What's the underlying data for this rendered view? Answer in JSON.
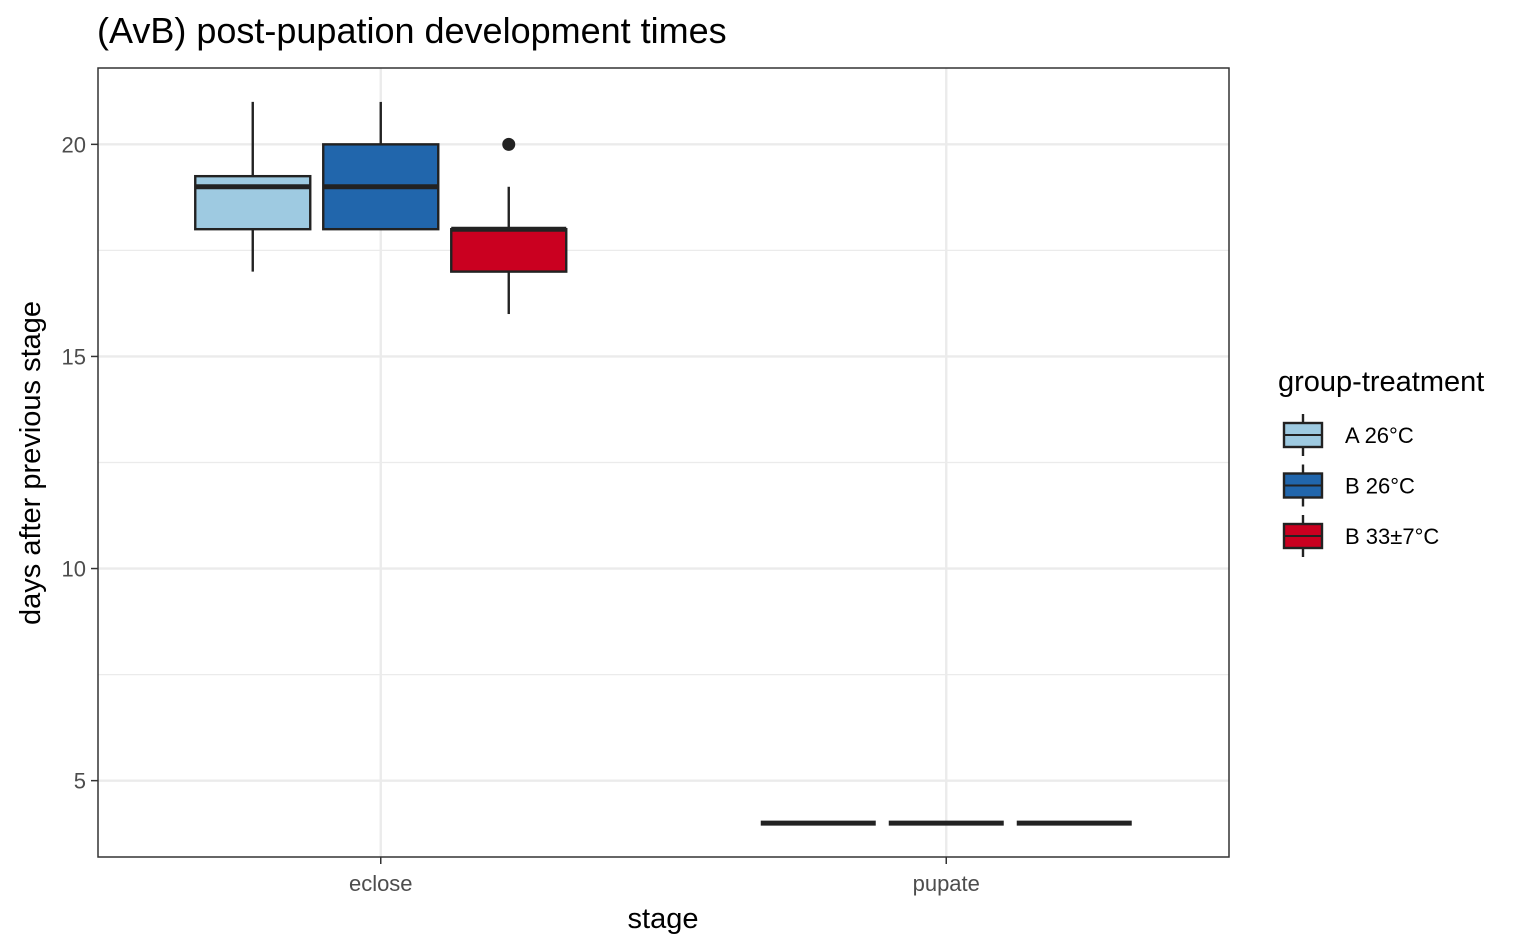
{
  "chart_data": {
    "type": "boxplot",
    "title": "(AvB) post-pupation development times",
    "xlabel": "stage",
    "ylabel": "days after previous stage",
    "categories": [
      "eclose",
      "pupate"
    ],
    "ylim": [
      3.2,
      21.8
    ],
    "yticks": [
      5,
      10,
      15,
      20
    ],
    "grid": true,
    "legend": {
      "title": "group-treatment",
      "position": "right"
    },
    "series": [
      {
        "name": "A 26°C",
        "color": "#9ecae1",
        "boxes": [
          {
            "category": "eclose",
            "min": 17,
            "q1": 18,
            "median": 19,
            "q3": 19.25,
            "max": 21,
            "outliers": []
          },
          {
            "category": "pupate",
            "min": 4,
            "q1": 4,
            "median": 4,
            "q3": 4,
            "max": 4,
            "outliers": []
          }
        ]
      },
      {
        "name": "B 26°C",
        "color": "#2166ac",
        "boxes": [
          {
            "category": "eclose",
            "min": 18,
            "q1": 18,
            "median": 19,
            "q3": 20,
            "max": 21,
            "outliers": []
          },
          {
            "category": "pupate",
            "min": 4,
            "q1": 4,
            "median": 4,
            "q3": 4,
            "max": 4,
            "outliers": []
          }
        ]
      },
      {
        "name": "B 33±7°C",
        "color": "#ca0020",
        "boxes": [
          {
            "category": "eclose",
            "min": 16,
            "q1": 17,
            "median": 18,
            "q3": 18,
            "max": 19,
            "outliers": [
              20
            ]
          },
          {
            "category": "pupate",
            "min": 4,
            "q1": 4,
            "median": 4,
            "q3": 4,
            "max": 4,
            "outliers": []
          }
        ]
      }
    ]
  }
}
